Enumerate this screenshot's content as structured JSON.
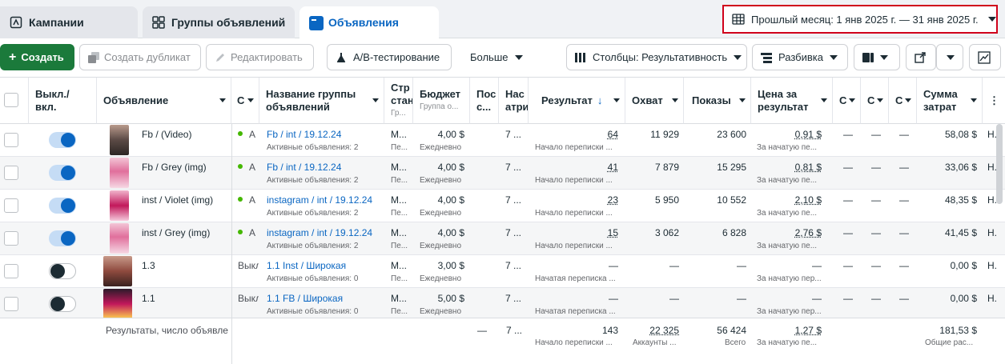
{
  "tabs": [
    {
      "label": "Кампании",
      "icon": "campaign-icon"
    },
    {
      "label": "Группы объявлений",
      "icon": "grid-icon"
    },
    {
      "label": "Объявления",
      "icon": "ad-icon",
      "active": true
    }
  ],
  "date_range": "Прошлый месяц: 1 янв 2025 г. — 31 янв 2025 г.",
  "toolbar": {
    "create": "Создать",
    "duplicate": "Создать дубликат",
    "edit": "Редактировать",
    "ab_test": "A/B-тестирование",
    "more": "Больше",
    "columns": "Столбцы: Результативность",
    "breakdown": "Разбивка"
  },
  "headers": {
    "toggle": "Выкл./ вкл.",
    "ad": "Объявление",
    "delivery": "С",
    "adset": "Название группы объявлений",
    "strategy": "Стр",
    "strategy_2": "стан",
    "strategy_sub": "Гр...",
    "budget": "Бюджет",
    "budget_sub": "Группа о...",
    "last_sig": "Пос",
    "last_sig_2": "с...",
    "settings": "Нас",
    "settings_2": "атри",
    "result": "Результат",
    "reach": "Охват",
    "impressions": "Показы",
    "cpr": "Цена за результат",
    "c1": "С",
    "c2": "С",
    "c3": "С",
    "spend": "Сумма затрат",
    "more": "⋮"
  },
  "rows": [
    {
      "ad": "Fb / (Video)",
      "delivery": "А",
      "active": true,
      "adset": "Fb / int / 19.12.24",
      "adset_sub": "Активные объявления: 2",
      "strategy": "М...",
      "strategy_sub": "Пе...",
      "budget": "4,00 $",
      "budget_sub": "Ежедневно",
      "settings": "7 ...",
      "result": "64",
      "result_sub": "Начало переписки ...",
      "reach": "11 929",
      "impressions": "23 600",
      "cpr": "0,91 $",
      "cpr_sub": "За начатую пе...",
      "c1": "—",
      "c2": "—",
      "c3": "—",
      "spend": "58,08 $",
      "last": "Н..."
    },
    {
      "ad": "Fb / Grey (img)",
      "delivery": "А",
      "active": true,
      "adset": "Fb / int / 19.12.24",
      "adset_sub": "Активные объявления: 2",
      "strategy": "М...",
      "strategy_sub": "Пе...",
      "budget": "4,00 $",
      "budget_sub": "Ежедневно",
      "settings": "7 ...",
      "result": "41",
      "result_sub": "Начало переписки ...",
      "reach": "7 879",
      "impressions": "15 295",
      "cpr": "0,81 $",
      "cpr_sub": "За начатую пе...",
      "c1": "—",
      "c2": "—",
      "c3": "—",
      "spend": "33,06 $",
      "last": "Н..."
    },
    {
      "ad": "inst / Violet (img)",
      "delivery": "А",
      "active": true,
      "adset": "instagram / int / 19.12.24",
      "adset_sub": "Активные объявления: 2",
      "strategy": "М...",
      "strategy_sub": "Пе...",
      "budget": "4,00 $",
      "budget_sub": "Ежедневно",
      "settings": "7 ...",
      "result": "23",
      "result_sub": "Начало переписки ...",
      "reach": "5 950",
      "impressions": "10 552",
      "cpr": "2,10 $",
      "cpr_sub": "За начатую пе...",
      "c1": "—",
      "c2": "—",
      "c3": "—",
      "spend": "48,35 $",
      "last": "Н..."
    },
    {
      "ad": "inst / Grey (img)",
      "delivery": "А",
      "active": true,
      "adset": "instagram / int / 19.12.24",
      "adset_sub": "Активные объявления: 2",
      "strategy": "М...",
      "strategy_sub": "Пе...",
      "budget": "4,00 $",
      "budget_sub": "Ежедневно",
      "settings": "7 ...",
      "result": "15",
      "result_sub": "Начало переписки ...",
      "reach": "3 062",
      "impressions": "6 828",
      "cpr": "2,76 $",
      "cpr_sub": "За начатую пе...",
      "c1": "—",
      "c2": "—",
      "c3": "—",
      "spend": "41,45 $",
      "last": "Н..."
    },
    {
      "ad": "1.3",
      "delivery": "Выкл",
      "active": false,
      "adset": "1.1 Inst / Широкая",
      "adset_sub": "Активные объявления: 0",
      "strategy": "М...",
      "strategy_sub": "Пе...",
      "budget": "3,00 $",
      "budget_sub": "Ежедневно",
      "settings": "7 ...",
      "result": "—",
      "result_sub": "Начатая переписка ...",
      "reach": "—",
      "impressions": "—",
      "cpr": "—",
      "cpr_sub": "За начатую пер...",
      "c1": "—",
      "c2": "—",
      "c3": "—",
      "spend": "0,00 $",
      "last": "Н..."
    },
    {
      "ad": "1.1",
      "delivery": "Выкл",
      "active": false,
      "adset": "1.1 FB / Широкая",
      "adset_sub": "Активные объявления: 0",
      "strategy": "М...",
      "strategy_sub": "Пе...",
      "budget": "5,00 $",
      "budget_sub": "Ежедневно",
      "settings": "7 ...",
      "result": "—",
      "result_sub": "Начатая переписка ...",
      "reach": "—",
      "impressions": "—",
      "cpr": "—",
      "cpr_sub": "За начатую пер...",
      "c1": "—",
      "c2": "—",
      "c3": "—",
      "spend": "0,00 $",
      "last": "Н..."
    }
  ],
  "footer": {
    "label": "Результаты, число объявле",
    "last_sig": "—",
    "settings": "7 ...",
    "result": "143",
    "result_sub": "Начало переписки ...",
    "reach": "22 325",
    "reach_sub": "Аккаунты ...",
    "impressions": "56 424",
    "impressions_sub": "Всего",
    "cpr": "1,27 $",
    "cpr_sub": "За начатую пе...",
    "spend": "181,53 $",
    "spend_sub": "Общие рас..."
  },
  "colors": {
    "accent": "#0a66c2",
    "create": "#1b7a3b",
    "highlight": "#d0021b",
    "active_dot": "#44b700"
  }
}
